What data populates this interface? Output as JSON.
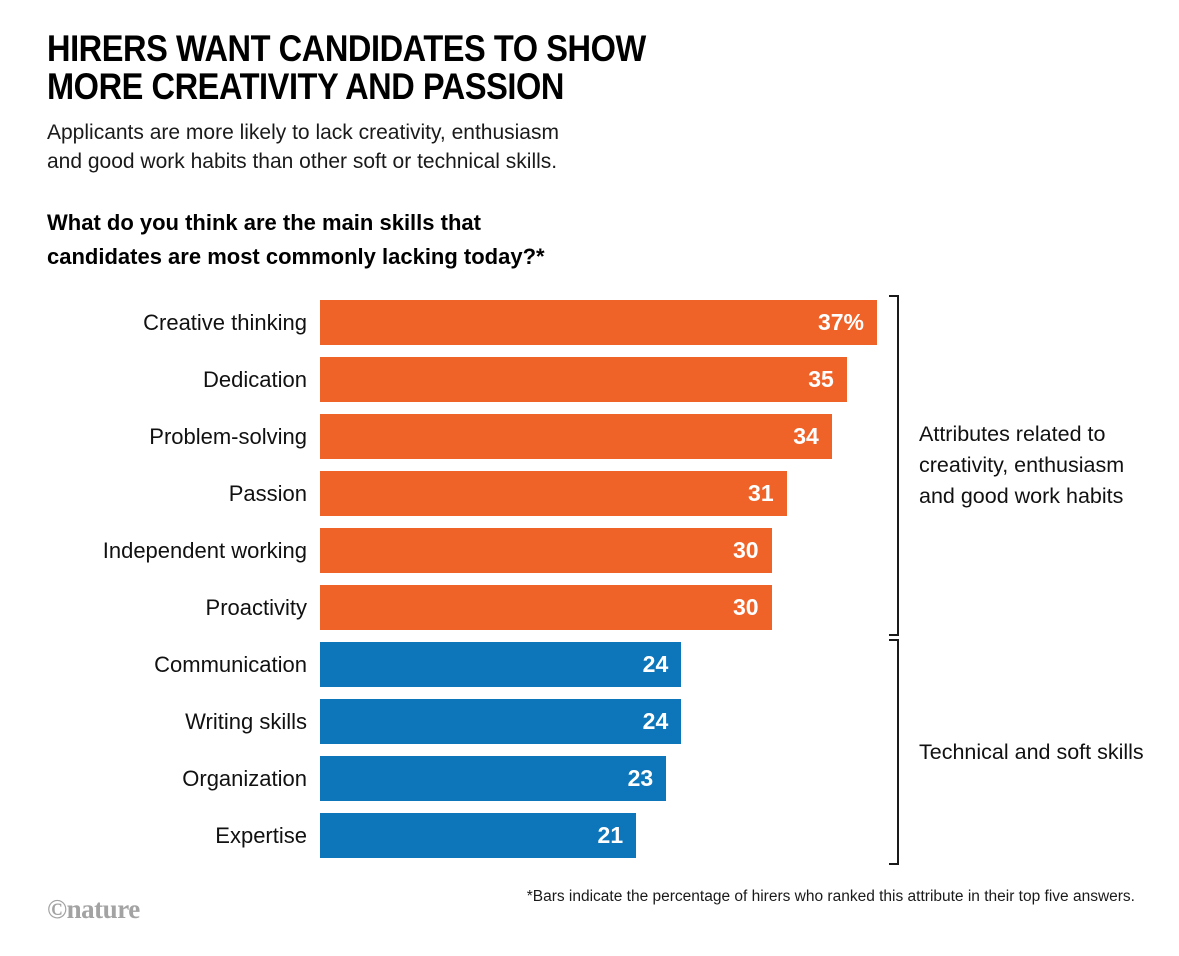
{
  "header": {
    "title_line1": "HIRERS WANT CANDIDATES TO SHOW",
    "title_line2": "MORE CREATIVITY AND PASSION",
    "subtitle_line1": "Applicants are more likely to lack creativity, enthusiasm",
    "subtitle_line2": "and good work habits than other soft or technical skills.",
    "question_line1": "What do you think are the main skills that",
    "question_line2": "candidates are most commonly lacking today?*"
  },
  "chart_data": {
    "type": "bar",
    "orientation": "horizontal",
    "title": "What do you think are the main skills that candidates are most commonly lacking today?*",
    "categories": [
      "Creative thinking",
      "Dedication",
      "Problem-solving",
      "Passion",
      "Independent working",
      "Proactivity",
      "Communication",
      "Writing skills",
      "Organization",
      "Expertise"
    ],
    "values": [
      37,
      35,
      34,
      31,
      30,
      30,
      24,
      24,
      23,
      21
    ],
    "value_labels": [
      "37%",
      "35",
      "34",
      "31",
      "30",
      "30",
      "24",
      "24",
      "23",
      "21"
    ],
    "groups": [
      "creativity",
      "creativity",
      "creativity",
      "creativity",
      "creativity",
      "creativity",
      "technical",
      "technical",
      "technical",
      "technical"
    ],
    "series_colors": {
      "creativity": "#ef6329",
      "technical": "#0d76ba"
    },
    "xlim": [
      0,
      37
    ],
    "unit": "percent",
    "grid": false,
    "legend": "none",
    "annotations": [
      {
        "text": "Attributes related to creativity, enthusiasm and good work habits",
        "group": "creativity"
      },
      {
        "text": "Technical and soft skills",
        "group": "technical"
      }
    ]
  },
  "footnote": "*Bars indicate the percentage of hirers who ranked this attribute in their top five answers.",
  "credit": "©nature"
}
